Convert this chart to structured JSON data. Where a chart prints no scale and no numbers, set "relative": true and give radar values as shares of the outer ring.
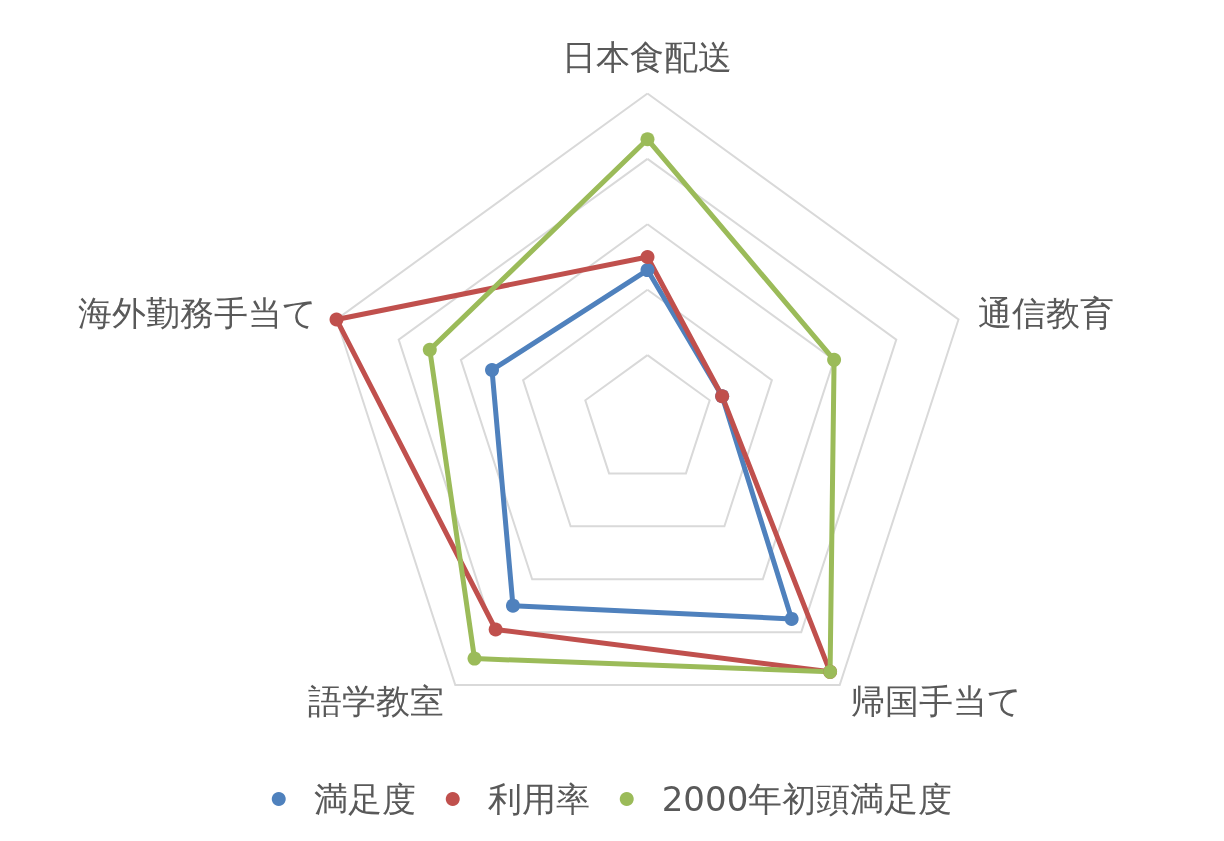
{
  "chart_data": {
    "type": "radar",
    "relative": true,
    "categories": [
      "日本食配送",
      "通信教育",
      "帰国手当て",
      "語学教室",
      "海外勤務手当て"
    ],
    "series": [
      {
        "name": "満足度",
        "color": "#4f81bd",
        "values": [
          0.46,
          0.24,
          0.75,
          0.7,
          0.5
        ]
      },
      {
        "name": "利用率",
        "color": "#c0504d",
        "values": [
          0.5,
          0.24,
          0.95,
          0.79,
          1
        ]
      },
      {
        "name": "2000年初頭満足度",
        "color": "#9bbb59",
        "values": [
          0.86,
          0.6,
          0.95,
          0.9,
          0.7
        ]
      }
    ],
    "legend": "bottom",
    "marker": "circle",
    "line_style": "solid",
    "grid": true
  }
}
